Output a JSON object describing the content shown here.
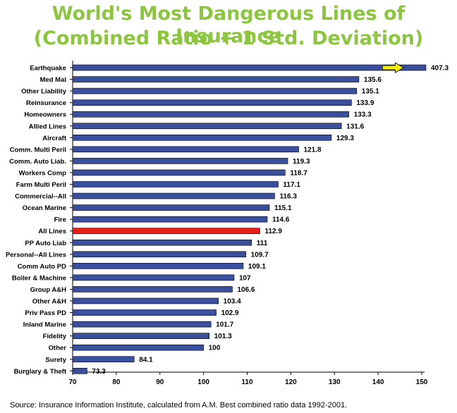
{
  "chart_data": {
    "type": "bar",
    "orientation": "horizontal",
    "title": "World's Most Dangerous Lines of Insurance",
    "subtitle": "(Combined Ratio + 1 Std. Deviation)",
    "categories": [
      "Earthquake",
      "Med Mal",
      "Other Liability",
      "Reinsurance",
      "Homeowners",
      "Allied Lines",
      "Aircraft",
      "Comm. Multi Peril",
      "Comm. Auto Liab.",
      "Workers Comp",
      "Farm Multi Peril",
      "Commercial--All",
      "Ocean Marine",
      "Fire",
      "All Lines",
      "PP Auto Liab",
      "Personal--All Lines",
      "Comm Auto PD",
      "Boiler & Machine",
      "Group A&H",
      "Other A&H",
      "Priv Pass PD",
      "Inland Marine",
      "Fidelity",
      "Other",
      "Surety",
      "Burglary & Theft"
    ],
    "values": [
      407.3,
      135.6,
      135.1,
      133.9,
      133.3,
      131.6,
      129.3,
      121.8,
      119.3,
      118.7,
      117.1,
      116.3,
      115.1,
      114.6,
      112.9,
      111,
      109.7,
      109.1,
      107,
      106.6,
      103.4,
      102.9,
      101.7,
      101.3,
      100,
      84.1,
      73.3
    ],
    "value_labels": [
      "407.3",
      "135.6",
      "135.1",
      "133.9",
      "133.3",
      "131.6",
      "129.3",
      "121.8",
      "119.3",
      "118.7",
      "117.1",
      "116.3",
      "115.1",
      "114.6",
      "112.9",
      "111",
      "109.7",
      "109.1",
      "107",
      "106.6",
      "103.4",
      "102.9",
      "101.7",
      "101.3",
      "100",
      "84.1",
      "73.3"
    ],
    "highlight_category": "All Lines",
    "truncated_category": "Earthquake",
    "xlim": [
      70,
      150
    ],
    "xticks": [
      "70",
      "80",
      "90",
      "100",
      "110",
      "120",
      "130",
      "140",
      "150"
    ],
    "colors": {
      "bar": "#3a4f9e",
      "highlight": "#e8201a",
      "arrow": "#f4f000",
      "title": "#8cc63e"
    },
    "source": "Source: Insurance Information Institute, calculated from A.M. Best combined ratio data 1992-2001."
  }
}
